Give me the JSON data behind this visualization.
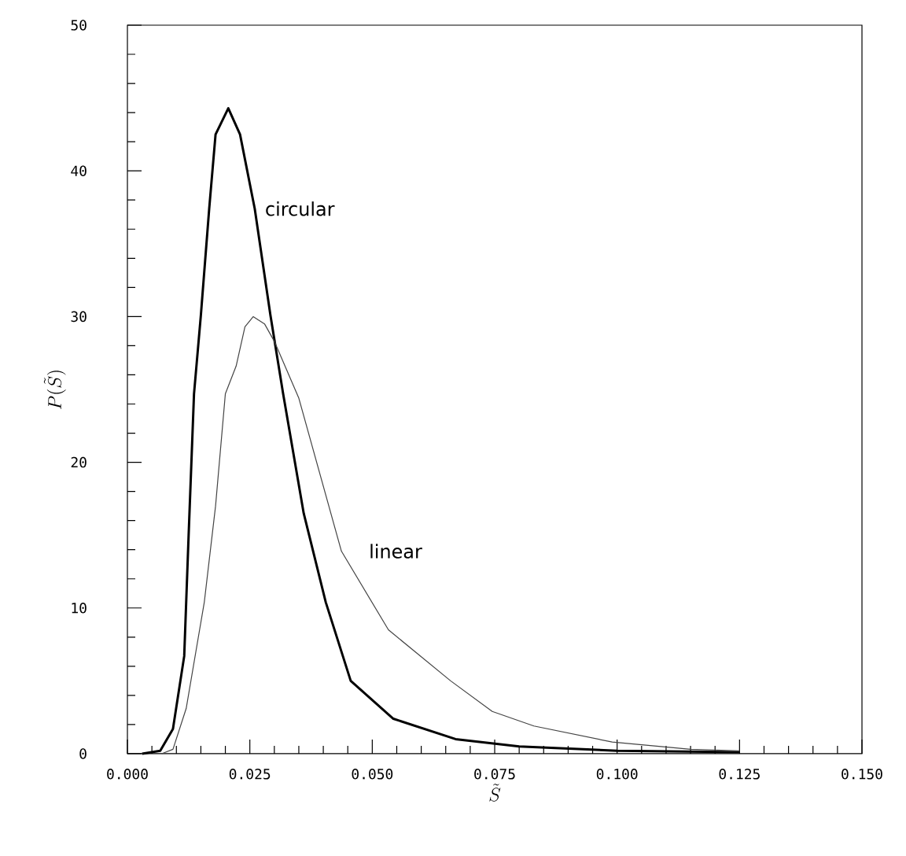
{
  "chart_data": {
    "type": "line",
    "xlabel": "\\tilde{S}",
    "ylabel": "P(\\tilde{S})",
    "xlim": [
      0,
      0.15
    ],
    "ylim": [
      0,
      50
    ],
    "xticks": [
      {
        "value": 0,
        "label": "0.000"
      },
      {
        "value": 0.025,
        "label": "0.025"
      },
      {
        "value": 0.05,
        "label": "0.050"
      },
      {
        "value": 0.075,
        "label": "0.075"
      },
      {
        "value": 0.1,
        "label": "0.100"
      },
      {
        "value": 0.125,
        "label": "0.125"
      },
      {
        "value": 0.15,
        "label": "0.150"
      }
    ],
    "yticks": [
      0,
      10,
      20,
      30,
      40,
      50
    ],
    "grid": false,
    "legend": false,
    "marker": "none",
    "line_style": "solid",
    "series": [
      {
        "name": "circular",
        "color": "#000000",
        "x": [
          0.003,
          0.0067,
          0.0093,
          0.0116,
          0.0125,
          0.0136,
          0.015,
          0.0167,
          0.018,
          0.0206,
          0.023,
          0.026,
          0.0292,
          0.0318,
          0.036,
          0.0405,
          0.0456,
          0.0543,
          0.067,
          0.08,
          0.1,
          0.125
        ],
        "values": [
          0,
          0.2,
          1.7,
          6.7,
          15,
          24.7,
          30.1,
          37.4,
          42.5,
          44.3,
          42.5,
          37.4,
          30.1,
          24.7,
          16.5,
          10.4,
          5.0,
          2.4,
          1.0,
          0.5,
          0.2,
          0.1
        ]
      },
      {
        "name": "linear",
        "color": "#444444",
        "x": [
          0.007,
          0.0093,
          0.012,
          0.0157,
          0.018,
          0.02,
          0.0222,
          0.024,
          0.0257,
          0.028,
          0.03,
          0.035,
          0.0437,
          0.0533,
          0.066,
          0.0745,
          0.083,
          0.099,
          0.115,
          0.125
        ],
        "values": [
          0,
          0.3,
          3.1,
          10.4,
          17,
          24.7,
          26.6,
          29.3,
          30,
          29.5,
          28.3,
          24.4,
          13.9,
          8.5,
          5.0,
          2.9,
          1.9,
          0.8,
          0.3,
          0.2
        ]
      }
    ]
  }
}
